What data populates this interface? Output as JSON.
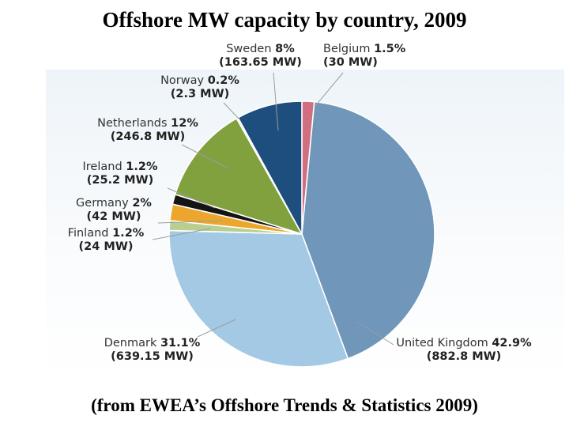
{
  "title": "Offshore MW capacity by country, 2009",
  "source": "(from EWEA’s Offshore Trends & Statistics 2009)",
  "chart_data": {
    "type": "pie",
    "title": "Offshore MW capacity by country, 2009",
    "units": "MW",
    "direction": "clockwise",
    "start_angle_deg": 0,
    "legend_position": "labels-around-pie",
    "slices": [
      {
        "name": "Belgium",
        "value": 1.5,
        "mw": 30,
        "pct_label": "1.5%",
        "mw_label": "(30 MW)",
        "color": "#d06f80"
      },
      {
        "name": "United Kingdom",
        "value": 42.9,
        "mw": 882.8,
        "pct_label": "42.9%",
        "mw_label": "(882.8 MW)",
        "color": "#7096ba"
      },
      {
        "name": "Denmark",
        "value": 31.1,
        "mw": 639.15,
        "pct_label": "31.1%",
        "mw_label": "(639.15 MW)",
        "color": "#a3c9e4"
      },
      {
        "name": "Finland",
        "value": 1.2,
        "mw": 24,
        "pct_label": "1.2%",
        "mw_label": "(24 MW)",
        "color": "#b9cf92"
      },
      {
        "name": "Germany",
        "value": 2,
        "mw": 42,
        "pct_label": "2%",
        "mw_label": "(42 MW)",
        "color": "#eda62c"
      },
      {
        "name": "Ireland",
        "value": 1.2,
        "mw": 25.2,
        "pct_label": "1.2%",
        "mw_label": "(25.2 MW)",
        "color": "#141414"
      },
      {
        "name": "Netherlands",
        "value": 12,
        "mw": 246.8,
        "pct_label": "12%",
        "mw_label": "(246.8 MW)",
        "color": "#81a03e"
      },
      {
        "name": "Norway",
        "value": 0.2,
        "mw": 2.3,
        "pct_label": "0.2%",
        "mw_label": "(2.3 MW)",
        "color": "#e6ecd4"
      },
      {
        "name": "Sweden",
        "value": 8,
        "mw": 163.65,
        "pct_label": "8%",
        "mw_label": "(163.65 MW)",
        "color": "#1d4e7e"
      }
    ]
  }
}
